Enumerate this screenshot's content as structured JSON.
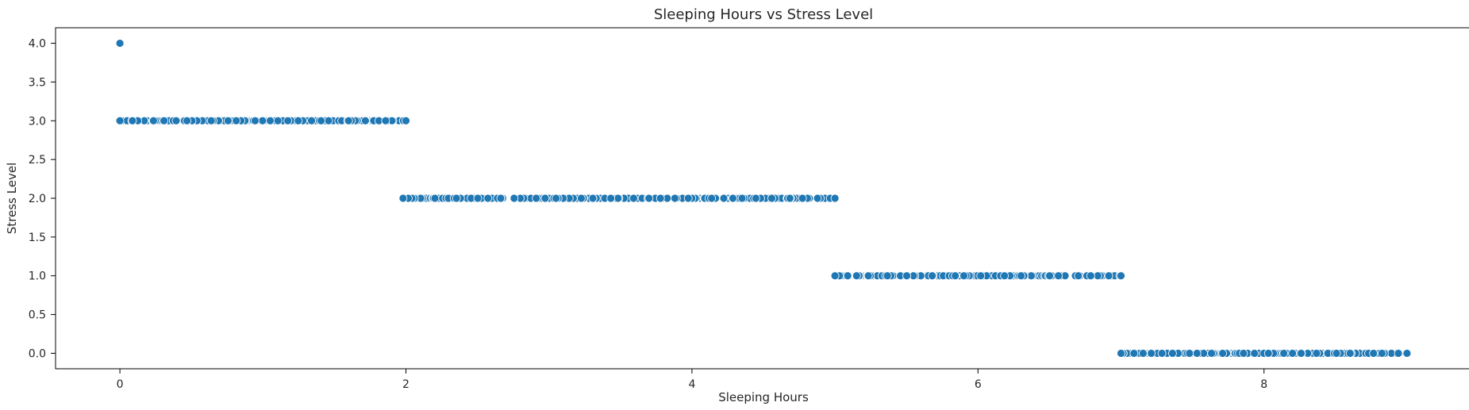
{
  "chart_data": {
    "type": "scatter",
    "title": "Sleeping Hours vs Stress Level",
    "xlabel": "Sleeping Hours",
    "ylabel": "Stress Level",
    "xlim": [
      -0.45,
      9.45
    ],
    "ylim": [
      -0.2,
      4.2
    ],
    "xticks": [
      0,
      2,
      4,
      6,
      8
    ],
    "xtick_labels": [
      "0",
      "2",
      "4",
      "6",
      "8"
    ],
    "yticks": [
      0,
      0.5,
      1,
      1.5,
      2,
      2.5,
      3,
      3.5,
      4
    ],
    "ytick_labels": [
      "0.0",
      "0.5",
      "1.0",
      "1.5",
      "2.0",
      "2.5",
      "3.0",
      "3.5",
      "4.0"
    ],
    "grid": false,
    "marker_color": "#1f77b4",
    "marker_edge_color": "#ffffff",
    "series": [
      {
        "points": [
          [
            0.0,
            4.0
          ]
        ]
      },
      {
        "x_range": [
          0.0,
          2.0
        ],
        "y": 3.0,
        "count": 300
      },
      {
        "x_range": [
          1.98,
          5.0
        ],
        "y": 2.0,
        "count": 300
      },
      {
        "x_range": [
          5.0,
          7.0
        ],
        "y": 1.0,
        "count": 300
      },
      {
        "x_range": [
          7.0,
          9.0
        ],
        "y": 0.0,
        "count": 300
      }
    ]
  }
}
